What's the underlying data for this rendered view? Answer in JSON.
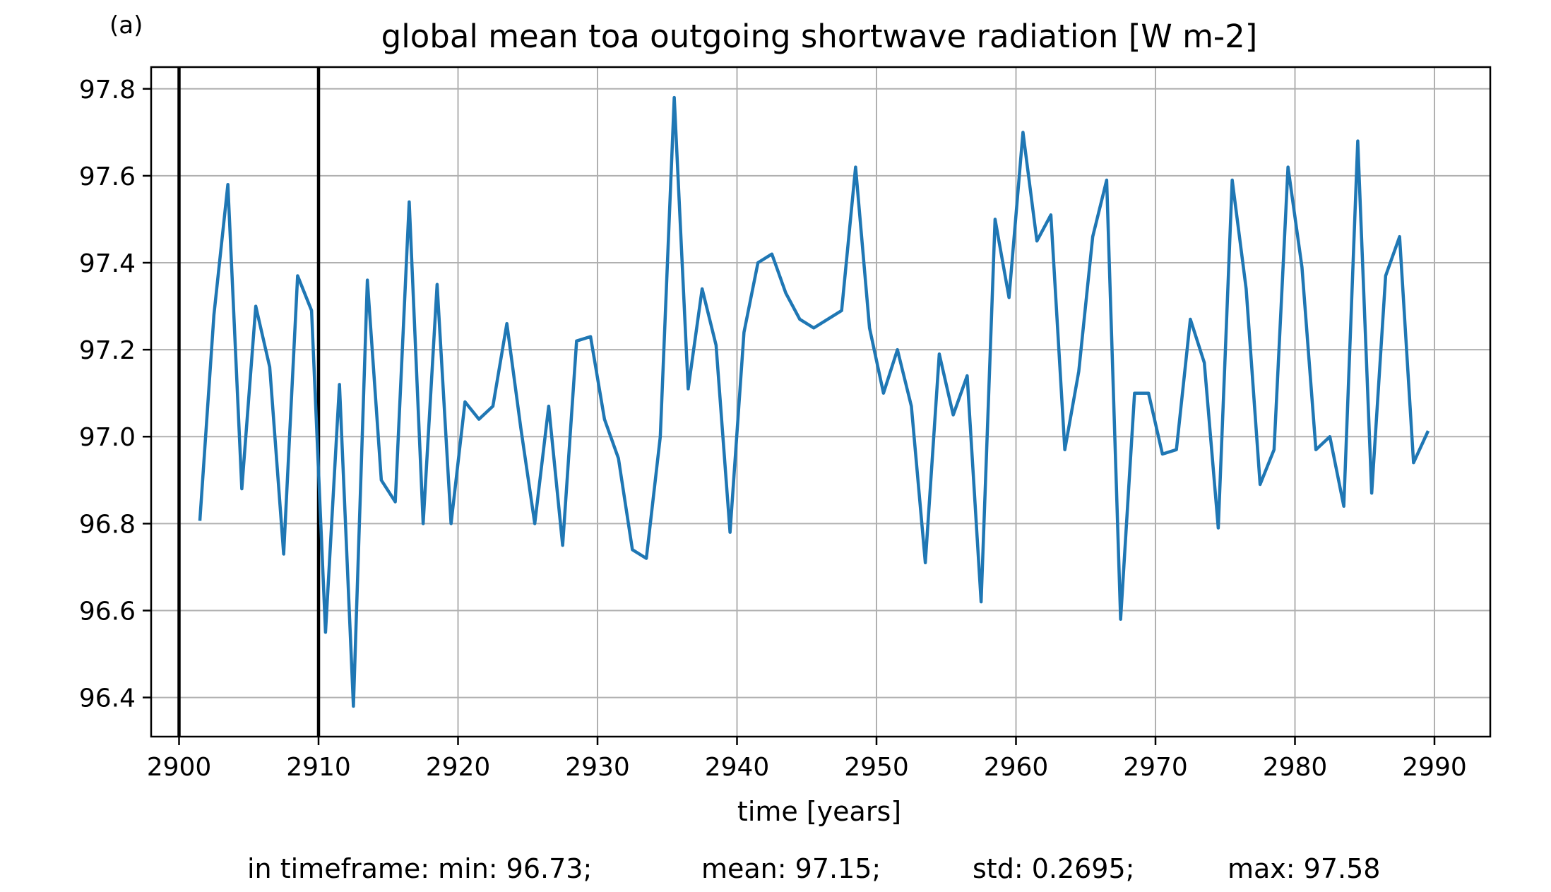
{
  "panel_label": "(a)",
  "stats": {
    "min": "in timeframe: min: 96.73;",
    "mean": "mean: 97.15;",
    "std": "std: 0.2695;",
    "max": "max: 97.58"
  },
  "colors": {
    "line": "#1f77b4",
    "grid": "#b0b0b0",
    "markers": "#000000"
  },
  "chart_data": {
    "type": "line",
    "title": "global mean toa outgoing shortwave radiation [W m-2]",
    "xlabel": "time [years]",
    "ylabel": "",
    "xlim": [
      2898,
      2994
    ],
    "ylim": [
      96.31,
      97.85
    ],
    "xticks": [
      2900,
      2910,
      2920,
      2930,
      2940,
      2950,
      2960,
      2970,
      2980,
      2990
    ],
    "yticks": [
      96.4,
      96.6,
      96.8,
      97.0,
      97.2,
      97.4,
      97.6,
      97.8
    ],
    "vlines": [
      2900,
      2910
    ],
    "grid": true,
    "series": [
      {
        "x": [
          2901.5,
          2902.5,
          2903.5,
          2904.5,
          2905.5,
          2906.5,
          2907.5,
          2908.5,
          2909.5,
          2910.5,
          2911.5,
          2912.5,
          2913.5,
          2914.5,
          2915.5,
          2916.5,
          2917.5,
          2918.5,
          2919.5,
          2920.5,
          2921.5,
          2922.5,
          2923.5,
          2924.5,
          2925.5,
          2926.5,
          2927.5,
          2928.5,
          2929.5,
          2930.5,
          2931.5,
          2932.5,
          2933.5,
          2934.5,
          2935.5,
          2936.5,
          2937.5,
          2938.5,
          2939.5,
          2940.5,
          2941.5,
          2942.5,
          2943.5,
          2944.5,
          2945.5,
          2946.5,
          2947.5,
          2948.5,
          2949.5,
          2950.5,
          2951.5,
          2952.5,
          2953.5,
          2954.5,
          2955.5,
          2956.5,
          2957.5,
          2958.5,
          2959.5,
          2960.5,
          2961.5,
          2962.5,
          2963.5,
          2964.5,
          2965.5,
          2966.5,
          2967.5,
          2968.5,
          2969.5,
          2970.5,
          2971.5,
          2972.5,
          2973.5,
          2974.5,
          2975.5,
          2976.5,
          2977.5,
          2978.5,
          2979.5,
          2980.5,
          2981.5,
          2982.5,
          2983.5,
          2984.5,
          2985.5,
          2986.5,
          2987.5,
          2988.5,
          2989.5
        ],
        "values": [
          96.81,
          97.28,
          97.58,
          96.88,
          97.3,
          97.16,
          96.73,
          97.37,
          97.29,
          96.55,
          97.12,
          96.38,
          97.36,
          96.9,
          96.85,
          97.54,
          96.8,
          97.35,
          96.8,
          97.08,
          97.04,
          97.07,
          97.26,
          97.02,
          96.8,
          97.07,
          96.75,
          97.22,
          97.23,
          97.04,
          96.95,
          96.74,
          96.72,
          97.0,
          97.78,
          97.11,
          97.34,
          97.21,
          96.78,
          97.24,
          97.4,
          97.42,
          97.33,
          97.27,
          97.25,
          97.27,
          97.29,
          97.62,
          97.25,
          97.1,
          97.2,
          97.07,
          96.71,
          97.19,
          97.05,
          97.14,
          96.62,
          97.5,
          97.32,
          97.7,
          97.45,
          97.51,
          96.97,
          97.15,
          97.46,
          97.59,
          96.58,
          97.1,
          97.1,
          96.96,
          96.97,
          97.27,
          97.17,
          96.79,
          97.59,
          97.34,
          96.89,
          96.97,
          97.62,
          97.39,
          96.97,
          97.0,
          96.84,
          97.68,
          96.87,
          97.37,
          97.46,
          96.94,
          97.01
        ]
      }
    ]
  }
}
